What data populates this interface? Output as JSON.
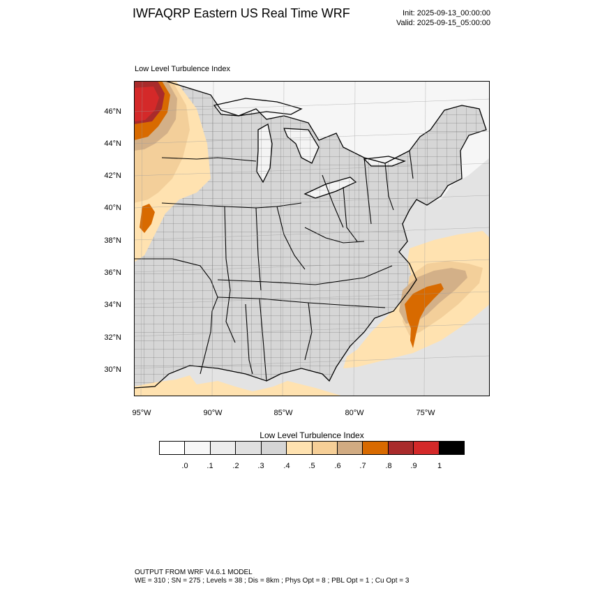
{
  "header": {
    "title": "IWFAQRP Eastern US Real Time WRF",
    "init": "Init: 2025-09-13_00:00:00",
    "valid": "Valid: 2025-09-15_05:00:00"
  },
  "map": {
    "label": "Low Level Turbulence Index",
    "lat_labels": [
      "46°N",
      "44°N",
      "42°N",
      "40°N",
      "38°N",
      "36°N",
      "34°N",
      "32°N",
      "30°N"
    ],
    "lon_labels": [
      "95°W",
      "90°W",
      "85°W",
      "80°W",
      "75°W"
    ],
    "colors": {
      "ocean": "#e3e3e3",
      "land": "#d6d6d6",
      "lakes": "#f4f4f4",
      "canada": "#f6f6f6",
      "low": "#ffe2b0",
      "mid": "#f3cf9a",
      "tan": "#d3b088",
      "orange": "#d86a00",
      "dark_red": "#a92b2b",
      "red": "#d42929"
    }
  },
  "colorbar": {
    "title": "Low Level Turbulence Index",
    "colors": [
      "#ffffff",
      "#f7f7f7",
      "#ededed",
      "#e0e0e0",
      "#d5d5d5",
      "#ffe2b0",
      "#f6cf97",
      "#d1ab82",
      "#d86a00",
      "#a92b2b",
      "#d42929",
      "#000000"
    ],
    "ticks": [
      ".0",
      ".1",
      ".2",
      ".3",
      ".4",
      ".5",
      ".6",
      ".7",
      ".8",
      ".9",
      "1"
    ]
  },
  "footer": {
    "line1": "OUTPUT FROM WRF V4.6.1 MODEL",
    "line2": "WE = 310 ; SN = 275 ; Levels = 38 ; Dis = 8km ; Phys Opt = 8 ; PBL Opt = 1 ; Cu Opt = 3"
  }
}
